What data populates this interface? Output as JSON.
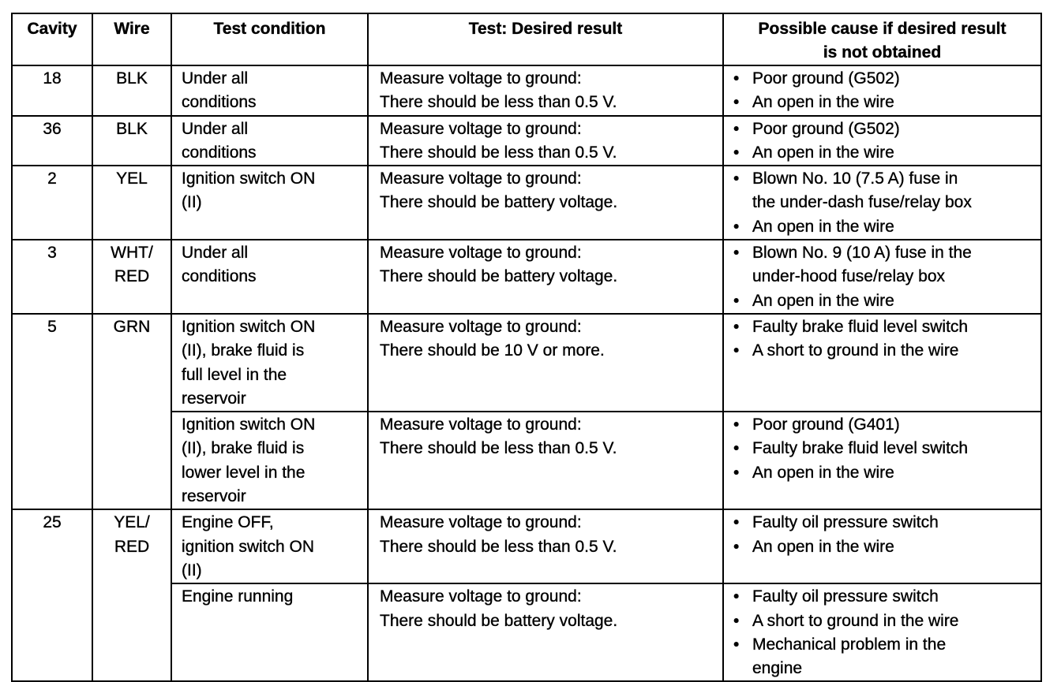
{
  "headers": [
    "Cavity",
    "Wire",
    "Test condition",
    "Test: Desired result",
    [
      "Possible cause if desired result",
      "is not obtained"
    ]
  ],
  "rows": [
    {
      "cavity": "18",
      "wire": [
        "BLK"
      ],
      "tests": [
        {
          "condition": [
            "Under all",
            "conditions"
          ],
          "result": [
            "Measure voltage to ground:",
            "There should be less than 0.5 V."
          ],
          "causes": [
            [
              "Poor ground (G502)"
            ],
            [
              "An open in the wire"
            ]
          ]
        }
      ]
    },
    {
      "cavity": "36",
      "wire": [
        "BLK"
      ],
      "tests": [
        {
          "condition": [
            "Under all",
            "conditions"
          ],
          "result": [
            "Measure voltage to ground:",
            "There should be less than 0.5 V."
          ],
          "causes": [
            [
              "Poor ground (G502)"
            ],
            [
              "An open in the wire"
            ]
          ]
        }
      ]
    },
    {
      "cavity": "2",
      "wire": [
        "YEL"
      ],
      "tests": [
        {
          "condition": [
            "Ignition switch ON",
            "(II)"
          ],
          "result": [
            "Measure voltage to ground:",
            "There should be battery voltage."
          ],
          "causes": [
            [
              "Blown No. 10 (7.5 A) fuse in",
              "the under-dash fuse/relay box"
            ],
            [
              "An open in the wire"
            ]
          ]
        }
      ]
    },
    {
      "cavity": "3",
      "wire": [
        "WHT/",
        "RED"
      ],
      "tests": [
        {
          "condition": [
            "Under all",
            "conditions"
          ],
          "result": [
            "Measure voltage to ground:",
            "There should be battery voltage."
          ],
          "causes": [
            [
              "Blown No. 9 (10 A) fuse in the",
              "under-hood fuse/relay box"
            ],
            [
              "An open in the wire"
            ]
          ]
        }
      ]
    },
    {
      "cavity": "5",
      "wire": [
        "GRN"
      ],
      "tests": [
        {
          "condition": [
            "Ignition switch ON",
            "(II), brake fluid is",
            "full level in the",
            "reservoir"
          ],
          "result": [
            "Measure voltage to ground:",
            "There should be 10 V or more."
          ],
          "causes": [
            [
              "Faulty brake fluid level switch"
            ],
            [
              "A short to ground in the wire"
            ]
          ]
        },
        {
          "condition": [
            "Ignition switch ON",
            "(II), brake fluid is",
            "lower level in the",
            "reservoir"
          ],
          "result": [
            "Measure voltage to ground:",
            "There should be less than 0.5 V."
          ],
          "causes": [
            [
              "Poor ground (G401)"
            ],
            [
              "Faulty brake fluid level switch"
            ],
            [
              "An open in the wire"
            ]
          ]
        }
      ]
    },
    {
      "cavity": "25",
      "wire": [
        "YEL/",
        "RED"
      ],
      "tests": [
        {
          "condition": [
            "Engine OFF,",
            "ignition switch ON",
            "(II)"
          ],
          "result": [
            "Measure voltage to ground:",
            "There should be less than 0.5 V."
          ],
          "causes": [
            [
              "Faulty oil pressure switch"
            ],
            [
              "An open in the wire"
            ]
          ]
        },
        {
          "condition": [
            "Engine running"
          ],
          "result": [
            "Measure voltage to ground:",
            "There should be battery voltage."
          ],
          "causes": [
            [
              "Faulty oil pressure switch"
            ],
            [
              "A short to ground in the wire"
            ],
            [
              "Mechanical problem in the",
              "engine"
            ]
          ]
        }
      ]
    }
  ],
  "bullet": "•"
}
